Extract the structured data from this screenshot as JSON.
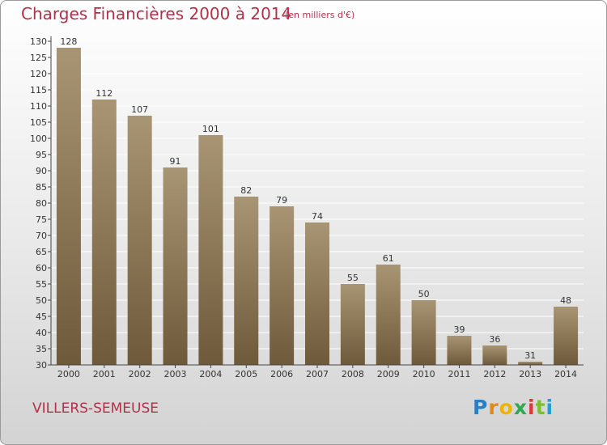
{
  "header": {
    "title": "Charges Financières 2000 à 2014",
    "subtitle": "(en milliers d'€)"
  },
  "footer": {
    "city": "VILLERS-SEMEUSE",
    "logo_text": "Proxiti"
  },
  "colors": {
    "title": "#b0324a",
    "bar_top": "#a89573",
    "bar_bottom": "#6e5a3a",
    "axis": "#444444",
    "grid": "#ffffff"
  },
  "chart_data": {
    "type": "bar",
    "title": "Charges Financières 2000 à 2014",
    "subtitle": "(en milliers d'€)",
    "categories": [
      "2000",
      "2001",
      "2002",
      "2003",
      "2004",
      "2005",
      "2006",
      "2007",
      "2008",
      "2009",
      "2010",
      "2011",
      "2012",
      "2013",
      "2014"
    ],
    "values": [
      128,
      112,
      107,
      91,
      101,
      82,
      79,
      74,
      55,
      61,
      50,
      39,
      36,
      31,
      48
    ],
    "ylim": [
      30,
      130
    ],
    "yticks": [
      30,
      35,
      40,
      45,
      50,
      55,
      60,
      65,
      70,
      75,
      80,
      85,
      90,
      95,
      100,
      105,
      110,
      115,
      120,
      125,
      130
    ],
    "grid": true,
    "data_labels": true
  }
}
